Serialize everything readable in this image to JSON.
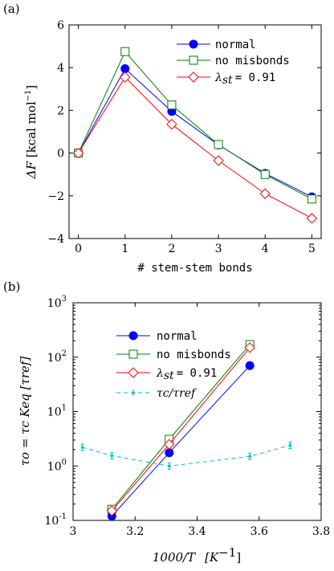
{
  "chart_data": [
    {
      "panel_label": "(a)",
      "type": "line",
      "xlabel": "# stem-stem bonds",
      "ylabel": "ΔF [kcal mol⁻¹]",
      "xlim": [
        -0.2,
        5.2
      ],
      "ylim": [
        -4,
        6
      ],
      "xticks": [
        "0",
        "1",
        "2",
        "3",
        "4",
        "5"
      ],
      "yticks": [
        "−4",
        "−2",
        "0",
        "2",
        "4",
        "6"
      ],
      "grid": false,
      "legend_position": "top-right",
      "series": [
        {
          "name": "normal",
          "marker": "filled-circle",
          "color": "#0000ff",
          "x": [
            0,
            1,
            2,
            3,
            4,
            5
          ],
          "y": [
            0.0,
            3.95,
            1.95,
            0.38,
            -0.95,
            -2.05
          ]
        },
        {
          "name": "no misbonds",
          "marker": "open-square",
          "color": "#008000",
          "x": [
            0,
            1,
            2,
            3,
            4,
            5
          ],
          "y": [
            0.0,
            4.75,
            2.25,
            0.4,
            -1.0,
            -2.15
          ]
        },
        {
          "name": "λ_st = 0.91",
          "marker": "open-diamond",
          "color": "#ff0000",
          "x": [
            0,
            1,
            2,
            3,
            4,
            5
          ],
          "y": [
            0.0,
            3.55,
            1.35,
            -0.35,
            -1.9,
            -3.05
          ]
        }
      ]
    },
    {
      "panel_label": "(b)",
      "type": "line",
      "xlabel": "1000/T [K⁻¹]",
      "ylabel": "τo = τc Keq [τref]",
      "xlim": [
        3.0,
        3.8
      ],
      "ylim": [
        0.1,
        1000
      ],
      "yscale": "log",
      "xticks": [
        "3",
        "3.2",
        "3.4",
        "3.6",
        "3.8"
      ],
      "grid": false,
      "legend_position": "top-left",
      "series": [
        {
          "name": "normal",
          "marker": "filled-circle",
          "color": "#0000ff",
          "style": "solid",
          "x": [
            3.125,
            3.31,
            3.57
          ],
          "y": [
            0.12,
            1.75,
            70
          ]
        },
        {
          "name": "no misbonds",
          "marker": "open-square",
          "color": "#008000",
          "style": "solid",
          "x": [
            3.125,
            3.31,
            3.57
          ],
          "y": [
            0.16,
            3.1,
            170
          ]
        },
        {
          "name": "λ_st = 0.91",
          "marker": "open-diamond",
          "color": "#ff0000",
          "style": "solid",
          "x": [
            3.125,
            3.31,
            3.57
          ],
          "y": [
            0.15,
            2.5,
            150
          ]
        },
        {
          "name": "τc/τref",
          "marker": "dot-errorbar",
          "color": "#00c0c0",
          "style": "dashed",
          "x": [
            3.03,
            3.125,
            3.31,
            3.57,
            3.7
          ],
          "y": [
            2.2,
            1.55,
            1.0,
            1.5,
            2.4
          ]
        }
      ]
    }
  ],
  "text": {
    "panel_a": "(a)",
    "panel_b": "(b)",
    "a_xlabel": "# stem-stem bonds",
    "a_ylabel_main": "ΔF",
    "a_ylabel_units": "[kcal mol",
    "a_ylabel_exp": "−1",
    "a_ylabel_close": "]",
    "b_xlabel_main": "1000/T",
    "b_xlabel_units": "[K",
    "b_xlabel_exp": "−1",
    "b_xlabel_close": "]",
    "b_ylabel": "τo = τc Keq [τref]",
    "leg_normal": "normal",
    "leg_nomis": "no misbonds",
    "leg_lambda": "λ",
    "leg_lambda_sub": "st",
    "leg_lambda_val": "= 0.91",
    "leg_tau": "τc/τref"
  }
}
